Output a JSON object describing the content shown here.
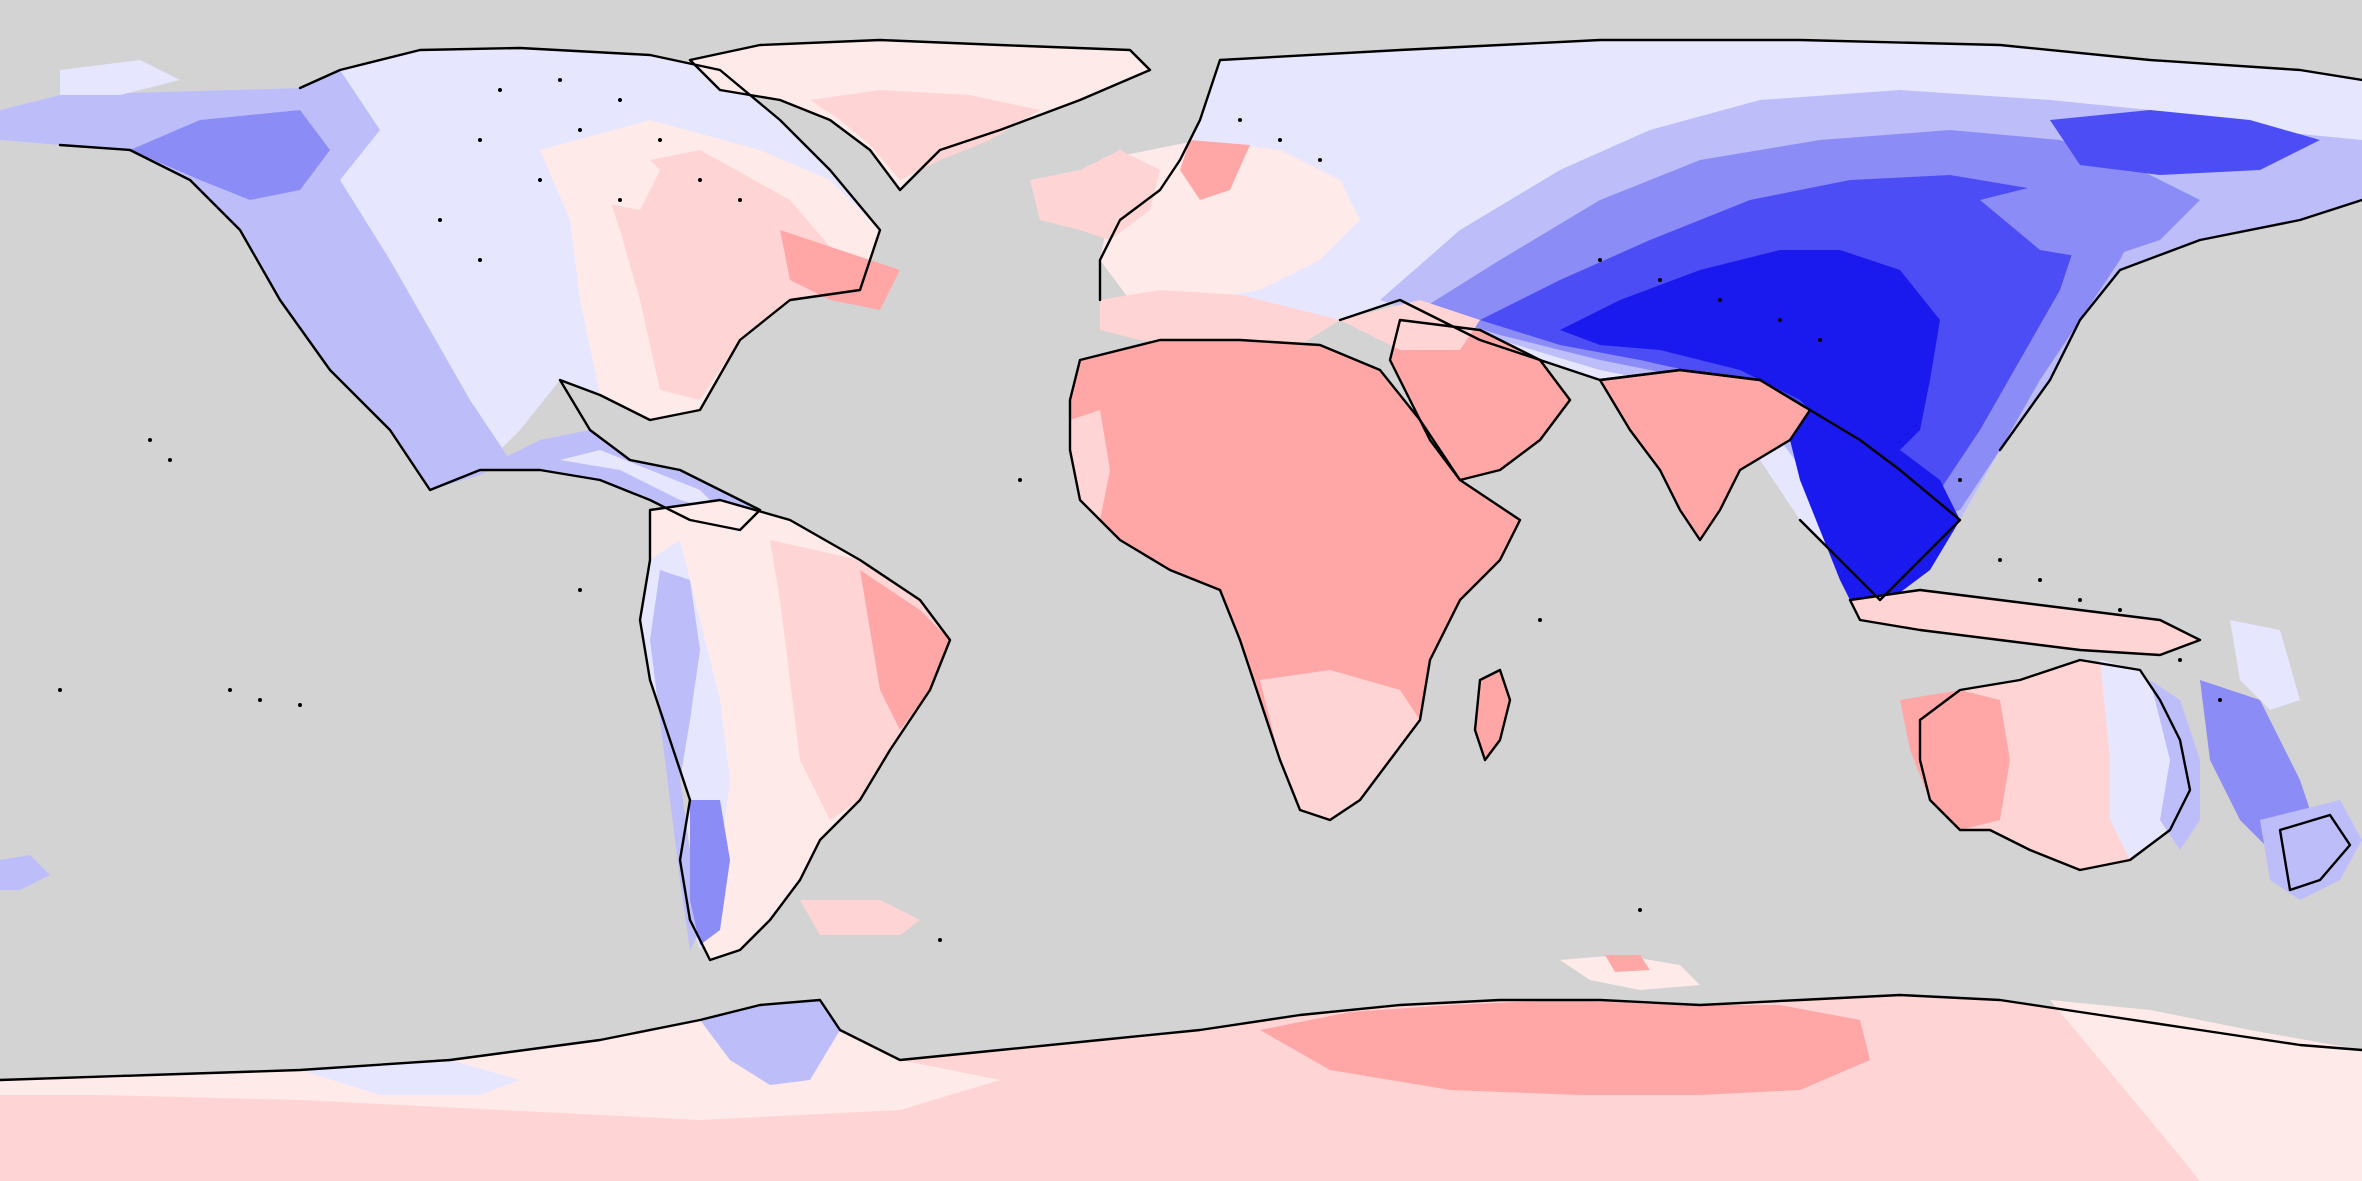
{
  "map": {
    "projection": "equirectangular",
    "ocean_color": "#d3d3d3",
    "coastline_color": "#000000",
    "palette": {
      "strong_negative": "#1a1aee",
      "negative": "#4d4df5",
      "moderate_negative": "#8c8cf7",
      "weak_negative": "#bdbdfa",
      "slight_negative": "#e6e6fe",
      "neutral": "#ffeaea",
      "slight_positive": "#ffd4d4",
      "positive": "#ffa7a7",
      "strong_positive": "#ff9494"
    },
    "legend": null,
    "title": null
  }
}
